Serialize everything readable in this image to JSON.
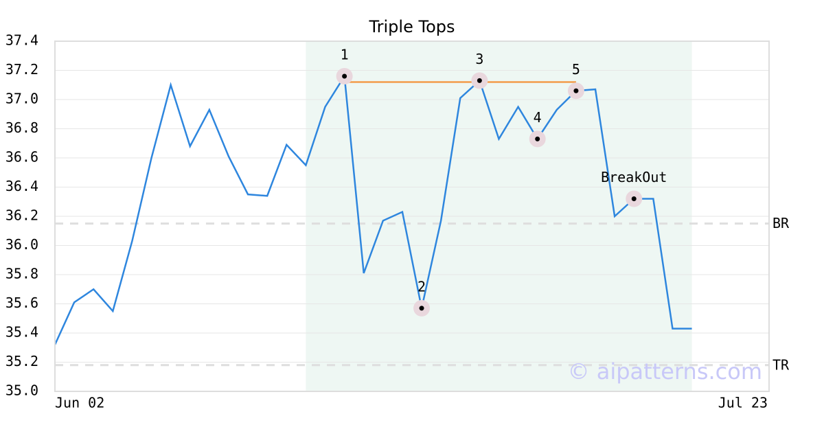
{
  "chart_data": {
    "type": "line",
    "title": "Triple Tops",
    "x": [
      0,
      1,
      2,
      3,
      4,
      5,
      6,
      7,
      8,
      9,
      10,
      11,
      12,
      13,
      14,
      15,
      16,
      17,
      18,
      19,
      20,
      21,
      22,
      23,
      24,
      25,
      26,
      27,
      28,
      29,
      30,
      31,
      32,
      33
    ],
    "series": [
      {
        "color": "#2e86de",
        "values": [
          35.32,
          35.61,
          35.7,
          35.55,
          36.03,
          36.6,
          37.1,
          36.68,
          36.93,
          36.61,
          36.35,
          36.34,
          36.69,
          36.55,
          36.95,
          37.16,
          35.81,
          36.17,
          36.23,
          35.57,
          36.17,
          37.01,
          37.13,
          36.73,
          36.95,
          36.73,
          36.93,
          37.06,
          37.07,
          36.2,
          36.32,
          36.32,
          35.43,
          35.43
        ]
      }
    ],
    "xlim": [
      0,
      37
    ],
    "xticks": [
      {
        "value": 0,
        "label": "Jun 02"
      },
      {
        "value": 37,
        "label": "Jul 23"
      }
    ],
    "ylim": [
      35.0,
      37.4
    ],
    "yticks": [
      {
        "value": 35,
        "label": "35.0"
      },
      35.2,
      35.4,
      35.6,
      35.8,
      {
        "value": 36,
        "label": "36.0"
      },
      36.2,
      36.4,
      36.6,
      36.8,
      {
        "value": 37,
        "label": "37.0"
      },
      37.2,
      37.4
    ],
    "grid": true,
    "pattern": {
      "start": 13,
      "end": 33,
      "color": "#eef7f3",
      "top_line": {
        "start": 15,
        "end": 27,
        "value": 37.12,
        "color": "#f39c4a"
      }
    },
    "points": [
      {
        "label": "1",
        "x": 15,
        "y": 37.16
      },
      {
        "label": "2",
        "x": 19,
        "y": 35.57
      },
      {
        "label": "3",
        "x": 22,
        "y": 37.13
      },
      {
        "label": "4",
        "x": 25,
        "y": 36.73
      },
      {
        "label": "5",
        "x": 27,
        "y": 37.06
      },
      {
        "label": "BreakOut",
        "x": 30,
        "y": 36.32
      }
    ],
    "levels": [
      {
        "label": "BR",
        "value": 36.15
      },
      {
        "label": "TR",
        "value": 35.18
      }
    ],
    "watermark": "© aipatterns.com"
  }
}
